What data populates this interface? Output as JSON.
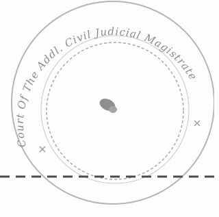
{
  "seal": {
    "ring_text": "Court Of The Addl. Civil Judicial Magistrate"
  }
}
